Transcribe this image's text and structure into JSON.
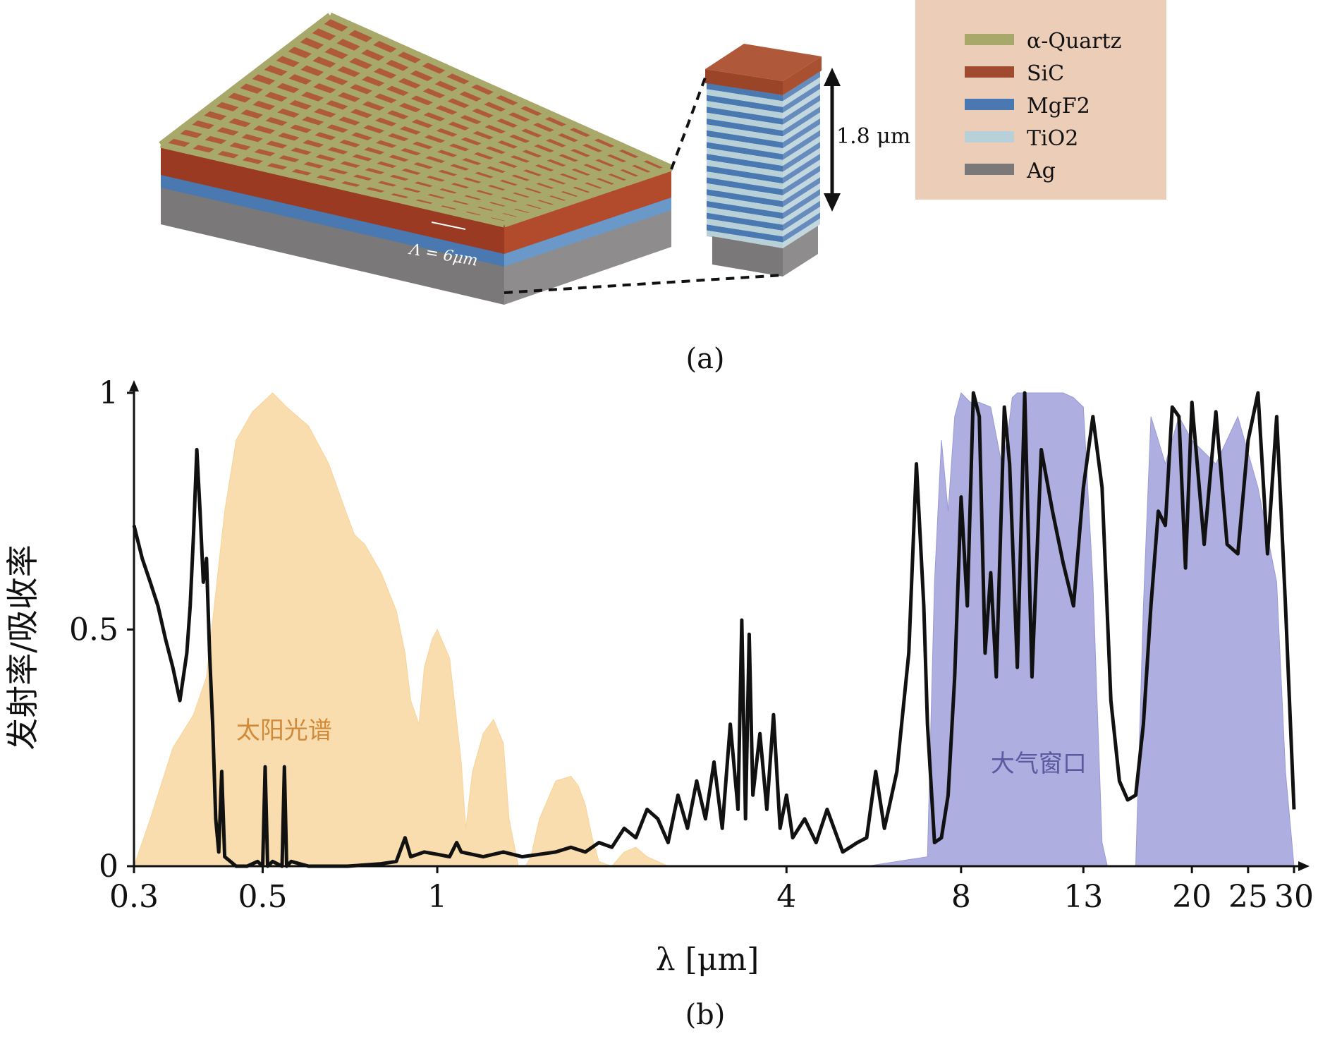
{
  "panel_a": {
    "caption": "(a)",
    "period_label": "Λ = 6μm",
    "height_label": "1.8 μm",
    "legend": [
      {
        "label": "α-Quartz",
        "color": "#a8a86a"
      },
      {
        "label": "SiC",
        "color": "#a04a30"
      },
      {
        "label": "MgF2",
        "color": "#4a78b0"
      },
      {
        "label": "TiO2",
        "color": "#b8d0d8"
      },
      {
        "label": "Ag",
        "color": "#7a7878"
      }
    ],
    "legend_bg": "#eccdb8"
  },
  "panel_b": {
    "caption": "(b)"
  },
  "chart_data": {
    "type": "area",
    "xlabel": "λ [μm]",
    "ylabel": "发射率/吸收率",
    "x_scale": "log",
    "xlim": [
      0.3,
      30
    ],
    "ylim": [
      0,
      1
    ],
    "xticks": [
      0.3,
      0.5,
      1,
      4,
      8,
      13,
      20,
      25,
      30
    ],
    "xtick_labels": [
      "0.3",
      "0.5",
      "1",
      "4",
      "8",
      "13",
      "20",
      "25",
      "30"
    ],
    "yticks": [
      0,
      0.5,
      1
    ],
    "ytick_labels": [
      "0",
      "0.5",
      "1"
    ],
    "annotations": [
      {
        "text": "太阳光谱",
        "x": 0.45,
        "y": 0.27,
        "color": "#d08a3a"
      },
      {
        "text": "大气窗口",
        "x": 9.0,
        "y": 0.2,
        "color": "#5a5aa0"
      }
    ],
    "series": [
      {
        "kind": "filled",
        "color": "#f8d49a",
        "x": [
          0.3,
          0.32,
          0.35,
          0.38,
          0.4,
          0.43,
          0.45,
          0.48,
          0.5,
          0.52,
          0.55,
          0.6,
          0.65,
          0.7,
          0.72,
          0.75,
          0.8,
          0.85,
          0.88,
          0.9,
          0.93,
          0.95,
          0.98,
          1.0,
          1.05,
          1.1,
          1.12,
          1.15,
          1.2,
          1.25,
          1.3,
          1.33,
          1.38,
          1.42,
          1.45,
          1.5,
          1.6,
          1.7,
          1.75,
          1.8,
          1.85,
          1.9,
          2.0,
          2.1,
          2.2,
          2.3,
          2.4,
          2.5,
          3.0,
          4.0,
          5.0
        ],
        "y": [
          0.0,
          0.1,
          0.25,
          0.32,
          0.4,
          0.75,
          0.9,
          0.96,
          0.98,
          1.0,
          0.97,
          0.93,
          0.85,
          0.74,
          0.7,
          0.68,
          0.62,
          0.54,
          0.45,
          0.35,
          0.3,
          0.42,
          0.48,
          0.5,
          0.44,
          0.22,
          0.08,
          0.2,
          0.28,
          0.31,
          0.26,
          0.1,
          0.0,
          0.0,
          0.02,
          0.1,
          0.18,
          0.19,
          0.17,
          0.13,
          0.06,
          0.01,
          0.0,
          0.03,
          0.04,
          0.02,
          0.01,
          0.0,
          0.0,
          0.0,
          0.0
        ],
        "name": ""
      },
      {
        "kind": "filled",
        "color": "#9a9ad8",
        "x": [
          0.3,
          4.0,
          5.5,
          7.0,
          7.2,
          7.4,
          7.6,
          7.8,
          8.0,
          8.3,
          8.6,
          9.0,
          9.4,
          9.6,
          9.8,
          10.0,
          11.0,
          12.0,
          12.5,
          13.0,
          13.5,
          14.0,
          14.3,
          14.6,
          15.0,
          16.0,
          16.5,
          17.0,
          17.5,
          18.0,
          19.0,
          20.0,
          22.0,
          24.0,
          26.0,
          28.0,
          29.0,
          30.0
        ],
        "y": [
          0.0,
          0.0,
          0.0,
          0.02,
          0.6,
          0.9,
          0.75,
          0.95,
          1.0,
          0.98,
          0.98,
          0.97,
          0.85,
          0.9,
          0.99,
          1.0,
          1.0,
          1.0,
          0.99,
          0.97,
          0.6,
          0.05,
          0.0,
          0.0,
          0.0,
          0.0,
          0.55,
          0.95,
          0.9,
          0.85,
          0.95,
          0.9,
          0.85,
          0.95,
          0.8,
          0.6,
          0.2,
          0.0
        ],
        "name": ""
      },
      {
        "kind": "line",
        "color": "#111111",
        "x": [
          0.3,
          0.31,
          0.32,
          0.33,
          0.34,
          0.35,
          0.36,
          0.37,
          0.375,
          0.38,
          0.385,
          0.39,
          0.395,
          0.4,
          0.405,
          0.41,
          0.415,
          0.42,
          0.425,
          0.43,
          0.44,
          0.45,
          0.47,
          0.49,
          0.5,
          0.505,
          0.51,
          0.52,
          0.54,
          0.545,
          0.55,
          0.56,
          0.6,
          0.7,
          0.8,
          0.85,
          0.88,
          0.9,
          0.95,
          1.0,
          1.05,
          1.08,
          1.1,
          1.2,
          1.3,
          1.4,
          1.5,
          1.6,
          1.7,
          1.8,
          1.9,
          2.0,
          2.1,
          2.2,
          2.3,
          2.4,
          2.5,
          2.6,
          2.7,
          2.8,
          2.9,
          3.0,
          3.1,
          3.2,
          3.3,
          3.35,
          3.4,
          3.45,
          3.5,
          3.6,
          3.7,
          3.8,
          3.9,
          4.0,
          4.1,
          4.3,
          4.5,
          4.7,
          5.0,
          5.3,
          5.5,
          5.7,
          5.9,
          6.0,
          6.2,
          6.5,
          6.7,
          6.9,
          7.0,
          7.2,
          7.4,
          7.6,
          7.8,
          8.0,
          8.2,
          8.4,
          8.6,
          8.8,
          9.0,
          9.2,
          9.5,
          9.7,
          10.0,
          10.3,
          10.6,
          11.0,
          11.5,
          12.0,
          12.5,
          13.0,
          13.5,
          14.0,
          14.5,
          15.0,
          15.5,
          16.0,
          16.5,
          17.0,
          17.5,
          18.0,
          18.5,
          19.0,
          19.5,
          20.0,
          21.0,
          22.0,
          23.0,
          24.0,
          25.0,
          26.0,
          27.0,
          28.0,
          29.0,
          30.0
        ],
        "y": [
          0.72,
          0.65,
          0.6,
          0.55,
          0.48,
          0.42,
          0.35,
          0.45,
          0.55,
          0.7,
          0.88,
          0.75,
          0.6,
          0.65,
          0.45,
          0.3,
          0.1,
          0.03,
          0.2,
          0.02,
          0.01,
          0.0,
          0.0,
          0.01,
          0.0,
          0.21,
          0.0,
          0.01,
          0.0,
          0.21,
          0.0,
          0.01,
          0.0,
          0.0,
          0.005,
          0.01,
          0.06,
          0.02,
          0.03,
          0.025,
          0.02,
          0.05,
          0.03,
          0.02,
          0.03,
          0.02,
          0.025,
          0.03,
          0.04,
          0.03,
          0.05,
          0.04,
          0.08,
          0.06,
          0.12,
          0.1,
          0.05,
          0.15,
          0.08,
          0.18,
          0.1,
          0.22,
          0.08,
          0.3,
          0.12,
          0.52,
          0.1,
          0.49,
          0.15,
          0.28,
          0.12,
          0.32,
          0.08,
          0.15,
          0.06,
          0.1,
          0.05,
          0.12,
          0.03,
          0.05,
          0.06,
          0.2,
          0.08,
          0.12,
          0.2,
          0.45,
          0.85,
          0.55,
          0.3,
          0.05,
          0.06,
          0.15,
          0.4,
          0.78,
          0.55,
          1.0,
          0.95,
          0.45,
          0.62,
          0.4,
          0.97,
          0.85,
          0.42,
          1.0,
          0.4,
          0.88,
          0.75,
          0.64,
          0.55,
          0.8,
          0.95,
          0.8,
          0.35,
          0.18,
          0.14,
          0.15,
          0.3,
          0.55,
          0.75,
          0.72,
          0.97,
          0.95,
          0.63,
          0.98,
          0.68,
          0.96,
          0.68,
          0.66,
          0.9,
          1.0,
          0.66,
          0.95,
          0.55,
          0.12
        ],
        "name": ""
      }
    ]
  }
}
